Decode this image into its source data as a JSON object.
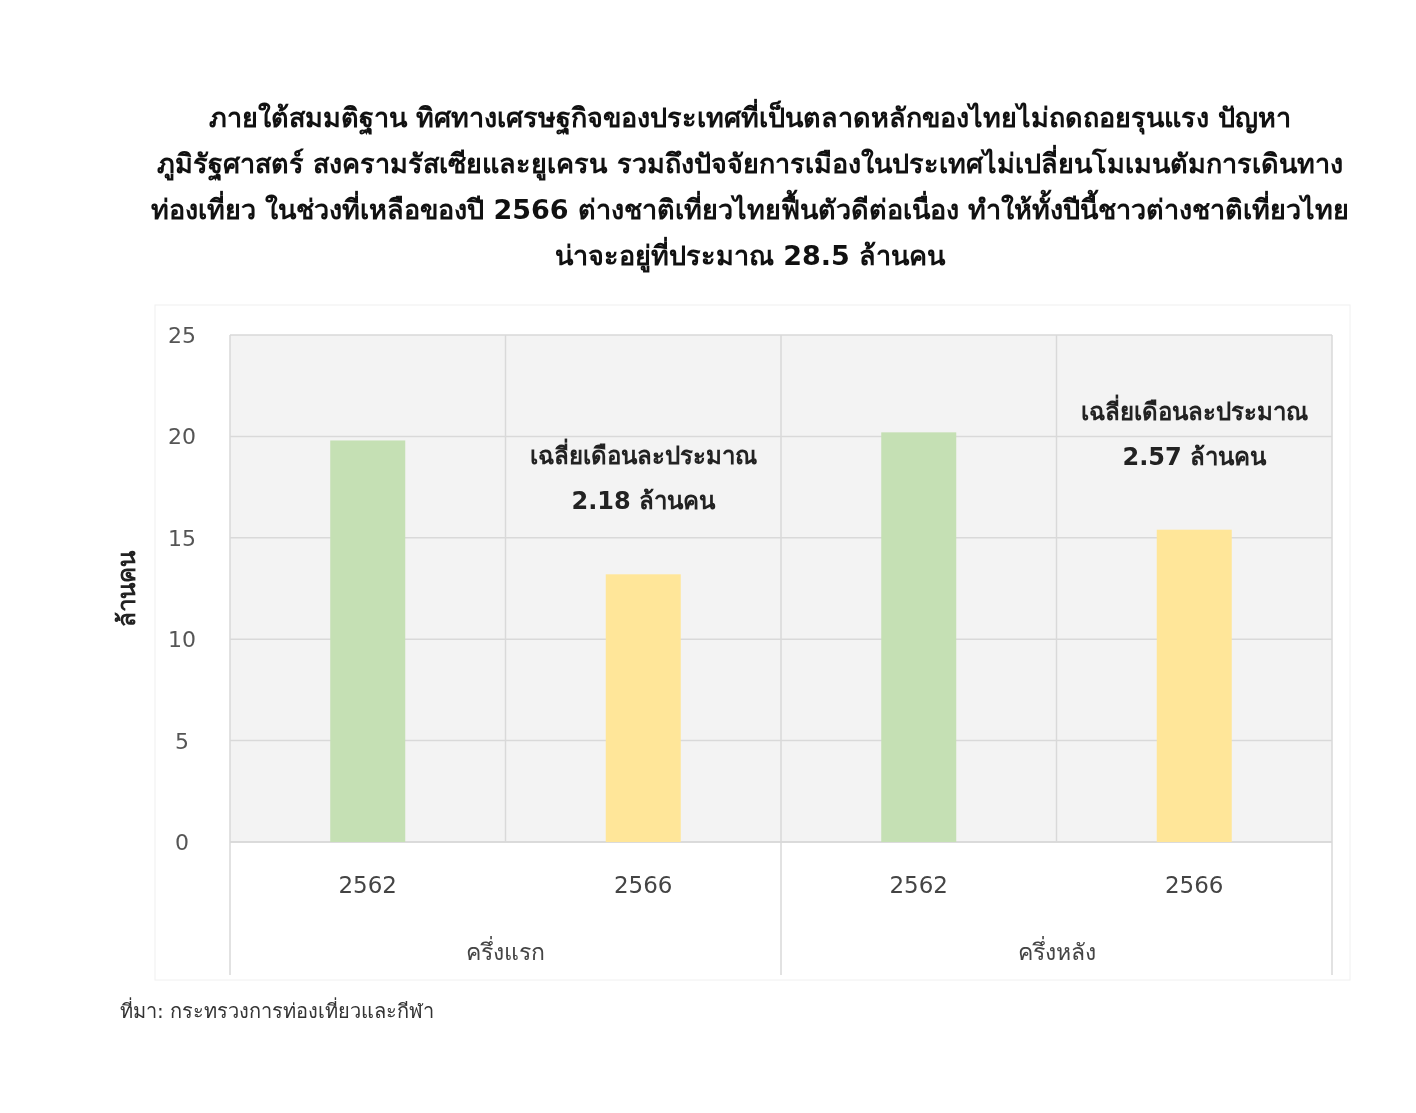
{
  "chart_data": {
    "type": "bar",
    "title": "ภายใต้สมมติฐาน ทิศทางเศรษฐกิจของประเทศที่เป็นตลาดหลักของไทยไม่ถดถอยรุนแรง ปัญหาภูมิรัฐศาสตร์ สงครามรัสเซียและยูเครน รวมถึงปัจจัยการเมืองในประเทศไม่เปลี่ยนโมเมนตัมการเดินทางท่องเที่ยว ในช่วงที่เหลือของปี 2566 ต่างชาติเที่ยวไทยฟื้นตัวดีต่อเนื่อง ทำให้ทั้งปีนี้ชาวต่างชาติเที่ยวไทยน่าจะอยู่ที่ประมาณ 28.5 ล้านคน",
    "ylabel": "ล้านคน",
    "categories": [
      "2562",
      "2566",
      "2562",
      "2566"
    ],
    "values": [
      19.8,
      13.2,
      20.2,
      15.4
    ],
    "colors": [
      "#c5e0b4",
      "#ffe699",
      "#c5e0b4",
      "#ffe699"
    ],
    "ylim": [
      0,
      25
    ],
    "yticks": [
      0,
      5,
      10,
      15,
      20,
      25
    ],
    "grid": true,
    "annotations": [
      "เฉลี่ยเดือนละประมาณ 2.18 ล้านคน",
      "เฉลี่ยเดือนละประมาณ 2.57 ล้านคน",
      "ครึ่งแรก",
      "ครึ่งหลัง",
      "ที่มา: กระทรวงการท่องเที่ยวและกีฬา"
    ]
  }
}
